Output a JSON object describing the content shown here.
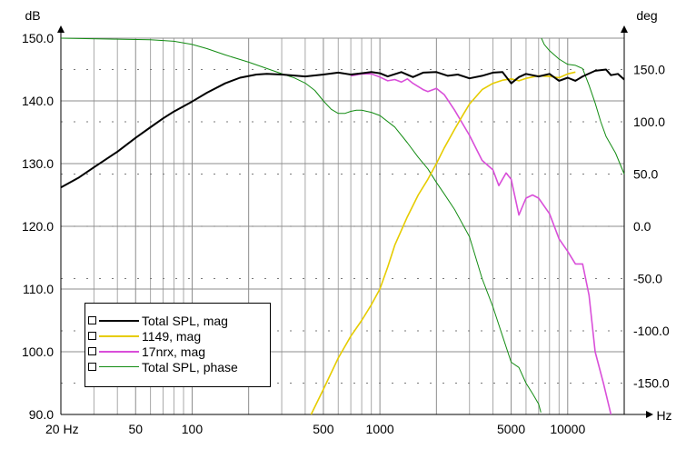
{
  "chart_data": {
    "type": "line",
    "ylabel": "dB",
    "y2label": "deg",
    "xunit": "Hz",
    "xscale": "log",
    "xlim": [
      20,
      20000
    ],
    "ylim": [
      90,
      150
    ],
    "y2lim": [
      -180,
      180
    ],
    "grid": true,
    "legend_position": "bottom-left",
    "xticks": [
      {
        "value": 20,
        "label": "20 Hz"
      },
      {
        "value": 50,
        "label": "50"
      },
      {
        "value": 100,
        "label": "100"
      },
      {
        "value": 500,
        "label": "500"
      },
      {
        "value": 1000,
        "label": "1000"
      },
      {
        "value": 5000,
        "label": "5000"
      },
      {
        "value": 10000,
        "label": "10000"
      }
    ],
    "yticks": [
      {
        "value": 150,
        "label": "150.0"
      },
      {
        "value": 140,
        "label": "140.0"
      },
      {
        "value": 130,
        "label": "130.0"
      },
      {
        "value": 120,
        "label": "120.0"
      },
      {
        "value": 110,
        "label": "110.0"
      },
      {
        "value": 100,
        "label": "100.0"
      },
      {
        "value": 90,
        "label": "90.0"
      }
    ],
    "y2ticks": [
      {
        "value": 150,
        "label": "150.0"
      },
      {
        "value": 100,
        "label": "100.0"
      },
      {
        "value": 50,
        "label": "50.0"
      },
      {
        "value": 0,
        "label": "0.0"
      },
      {
        "value": -50,
        "label": "-50.0"
      },
      {
        "value": -100,
        "label": "-100.0"
      },
      {
        "value": -150,
        "label": "-150.0"
      }
    ],
    "series": [
      {
        "name": "Total SPL, mag",
        "axis": "left",
        "color": "#000000",
        "points": [
          [
            20,
            126.2
          ],
          [
            25,
            127.8
          ],
          [
            30,
            129.4
          ],
          [
            40,
            131.9
          ],
          [
            50,
            134.1
          ],
          [
            60,
            135.8
          ],
          [
            70,
            137.2
          ],
          [
            80,
            138.3
          ],
          [
            100,
            139.9
          ],
          [
            120,
            141.3
          ],
          [
            150,
            142.8
          ],
          [
            180,
            143.7
          ],
          [
            220,
            144.2
          ],
          [
            250,
            144.3
          ],
          [
            300,
            144.2
          ],
          [
            400,
            143.9
          ],
          [
            500,
            144.2
          ],
          [
            600,
            144.5
          ],
          [
            700,
            144.2
          ],
          [
            800,
            144.4
          ],
          [
            900,
            144.6
          ],
          [
            1000,
            144.4
          ],
          [
            1100,
            143.9
          ],
          [
            1300,
            144.6
          ],
          [
            1500,
            143.8
          ],
          [
            1700,
            144.5
          ],
          [
            2000,
            144.6
          ],
          [
            2300,
            144.0
          ],
          [
            2600,
            144.2
          ],
          [
            3000,
            143.6
          ],
          [
            3500,
            144.0
          ],
          [
            4000,
            144.5
          ],
          [
            4500,
            144.6
          ],
          [
            5000,
            142.8
          ],
          [
            5500,
            143.8
          ],
          [
            6000,
            144.3
          ],
          [
            7000,
            143.9
          ],
          [
            8000,
            144.3
          ],
          [
            9000,
            143.2
          ],
          [
            10000,
            143.7
          ],
          [
            11000,
            143.2
          ],
          [
            12000,
            143.9
          ],
          [
            14000,
            144.8
          ],
          [
            16000,
            145.0
          ],
          [
            17000,
            144.1
          ],
          [
            18500,
            144.3
          ],
          [
            20000,
            143.4
          ]
        ]
      },
      {
        "name": "1149, mag",
        "axis": "left",
        "color": "#e6cc00",
        "points": [
          [
            430,
            90
          ],
          [
            500,
            94
          ],
          [
            600,
            99
          ],
          [
            700,
            102.5
          ],
          [
            800,
            105
          ],
          [
            900,
            107.5
          ],
          [
            1000,
            110
          ],
          [
            1100,
            113.5
          ],
          [
            1200,
            117
          ],
          [
            1400,
            121.5
          ],
          [
            1600,
            125
          ],
          [
            1800,
            127.5
          ],
          [
            2000,
            130
          ],
          [
            2200,
            132.5
          ],
          [
            2500,
            135.5
          ],
          [
            2800,
            138
          ],
          [
            3000,
            139.5
          ],
          [
            3500,
            141.8
          ],
          [
            4000,
            142.8
          ],
          [
            4500,
            143.3
          ],
          [
            5000,
            143.5
          ],
          [
            5500,
            143.2
          ],
          [
            6000,
            143.6
          ],
          [
            7000,
            144.0
          ],
          [
            8000,
            143.9
          ],
          [
            9000,
            143.7
          ],
          [
            10000,
            144.3
          ],
          [
            11000,
            144.6
          ]
        ]
      },
      {
        "name": "17nrx, mag",
        "axis": "left",
        "color": "#d94fd9",
        "points": [
          [
            700,
            144.0
          ],
          [
            800,
            144.3
          ],
          [
            900,
            144.3
          ],
          [
            1000,
            143.8
          ],
          [
            1100,
            143.2
          ],
          [
            1200,
            143.4
          ],
          [
            1300,
            143.0
          ],
          [
            1400,
            143.5
          ],
          [
            1500,
            142.8
          ],
          [
            1700,
            141.8
          ],
          [
            1800,
            141.5
          ],
          [
            2000,
            142.0
          ],
          [
            2200,
            141.0
          ],
          [
            2500,
            138.5
          ],
          [
            3000,
            134.5
          ],
          [
            3500,
            130.5
          ],
          [
            4000,
            129.0
          ],
          [
            4300,
            126.5
          ],
          [
            4700,
            128.5
          ],
          [
            5000,
            127.5
          ],
          [
            5500,
            121.8
          ],
          [
            6000,
            124.5
          ],
          [
            6500,
            125.0
          ],
          [
            7000,
            124.5
          ],
          [
            8000,
            122.0
          ],
          [
            9000,
            118.0
          ],
          [
            10000,
            116.0
          ],
          [
            11000,
            114.0
          ],
          [
            12000,
            114.0
          ],
          [
            13000,
            109.0
          ],
          [
            14000,
            100.0
          ],
          [
            15500,
            95.0
          ],
          [
            17000,
            90.0
          ]
        ]
      },
      {
        "name": "Total SPL, phase",
        "axis": "right",
        "color": "#138c13",
        "points": [
          [
            20,
            180
          ],
          [
            40,
            179
          ],
          [
            60,
            178.5
          ],
          [
            80,
            177
          ],
          [
            100,
            174
          ],
          [
            120,
            170
          ],
          [
            150,
            164
          ],
          [
            200,
            157
          ],
          [
            250,
            151
          ],
          [
            300,
            146
          ],
          [
            350,
            142
          ],
          [
            400,
            137
          ],
          [
            450,
            130
          ],
          [
            500,
            120
          ],
          [
            550,
            112
          ],
          [
            600,
            108
          ],
          [
            650,
            108
          ],
          [
            700,
            110
          ],
          [
            750,
            111
          ],
          [
            800,
            111
          ],
          [
            900,
            109
          ],
          [
            1000,
            106
          ],
          [
            1200,
            95
          ],
          [
            1400,
            80
          ],
          [
            1600,
            66
          ],
          [
            1800,
            55
          ],
          [
            2000,
            42
          ],
          [
            2200,
            31
          ],
          [
            2500,
            16
          ],
          [
            3000,
            -10
          ],
          [
            3500,
            -50
          ],
          [
            4000,
            -77
          ],
          [
            4500,
            -105
          ],
          [
            5000,
            -130
          ],
          [
            5500,
            -135
          ],
          [
            6000,
            -150
          ],
          [
            6500,
            -160
          ],
          [
            7000,
            -170
          ],
          [
            7200,
            -178
          ],
          [
            7250,
            180
          ],
          [
            7500,
            174
          ],
          [
            8000,
            168
          ],
          [
            9000,
            160
          ],
          [
            10000,
            155
          ],
          [
            11000,
            154
          ],
          [
            12000,
            151
          ],
          [
            13000,
            135
          ],
          [
            14000,
            118
          ],
          [
            15000,
            100
          ],
          [
            16000,
            86
          ],
          [
            18000,
            70
          ],
          [
            20000,
            50
          ]
        ]
      }
    ]
  }
}
